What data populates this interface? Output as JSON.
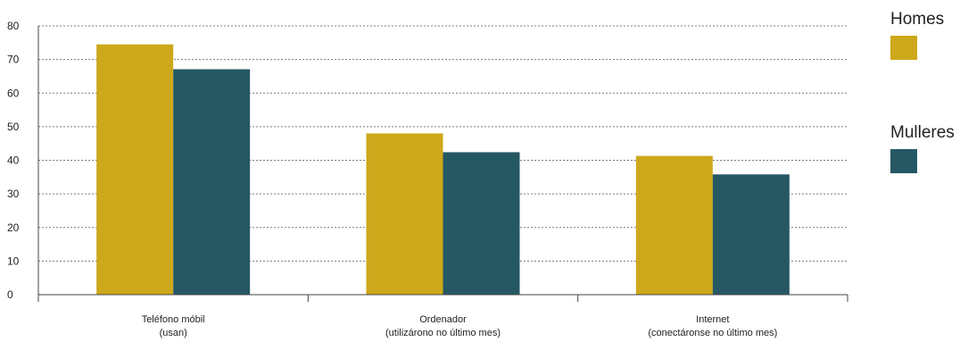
{
  "chart_data": {
    "type": "bar",
    "categories": [
      [
        "Teléfono móbil",
        "(usan)"
      ],
      [
        "Ordenador",
        "(utilizárono no último mes)"
      ],
      [
        "Internet",
        "(conectáronse no último mes)"
      ]
    ],
    "series": [
      {
        "name": "Homes",
        "color": "#CDA81A",
        "values": [
          74.5,
          48.0,
          41.3
        ]
      },
      {
        "name": "Mulleres",
        "color": "#255863",
        "values": [
          67.1,
          42.4,
          35.8
        ]
      }
    ],
    "ylim": [
      0,
      80
    ],
    "yticks": [
      0,
      10,
      20,
      30,
      40,
      50,
      60,
      70,
      80
    ],
    "grid": true,
    "legend_position": "right",
    "title": "",
    "xlabel": "",
    "ylabel": ""
  }
}
